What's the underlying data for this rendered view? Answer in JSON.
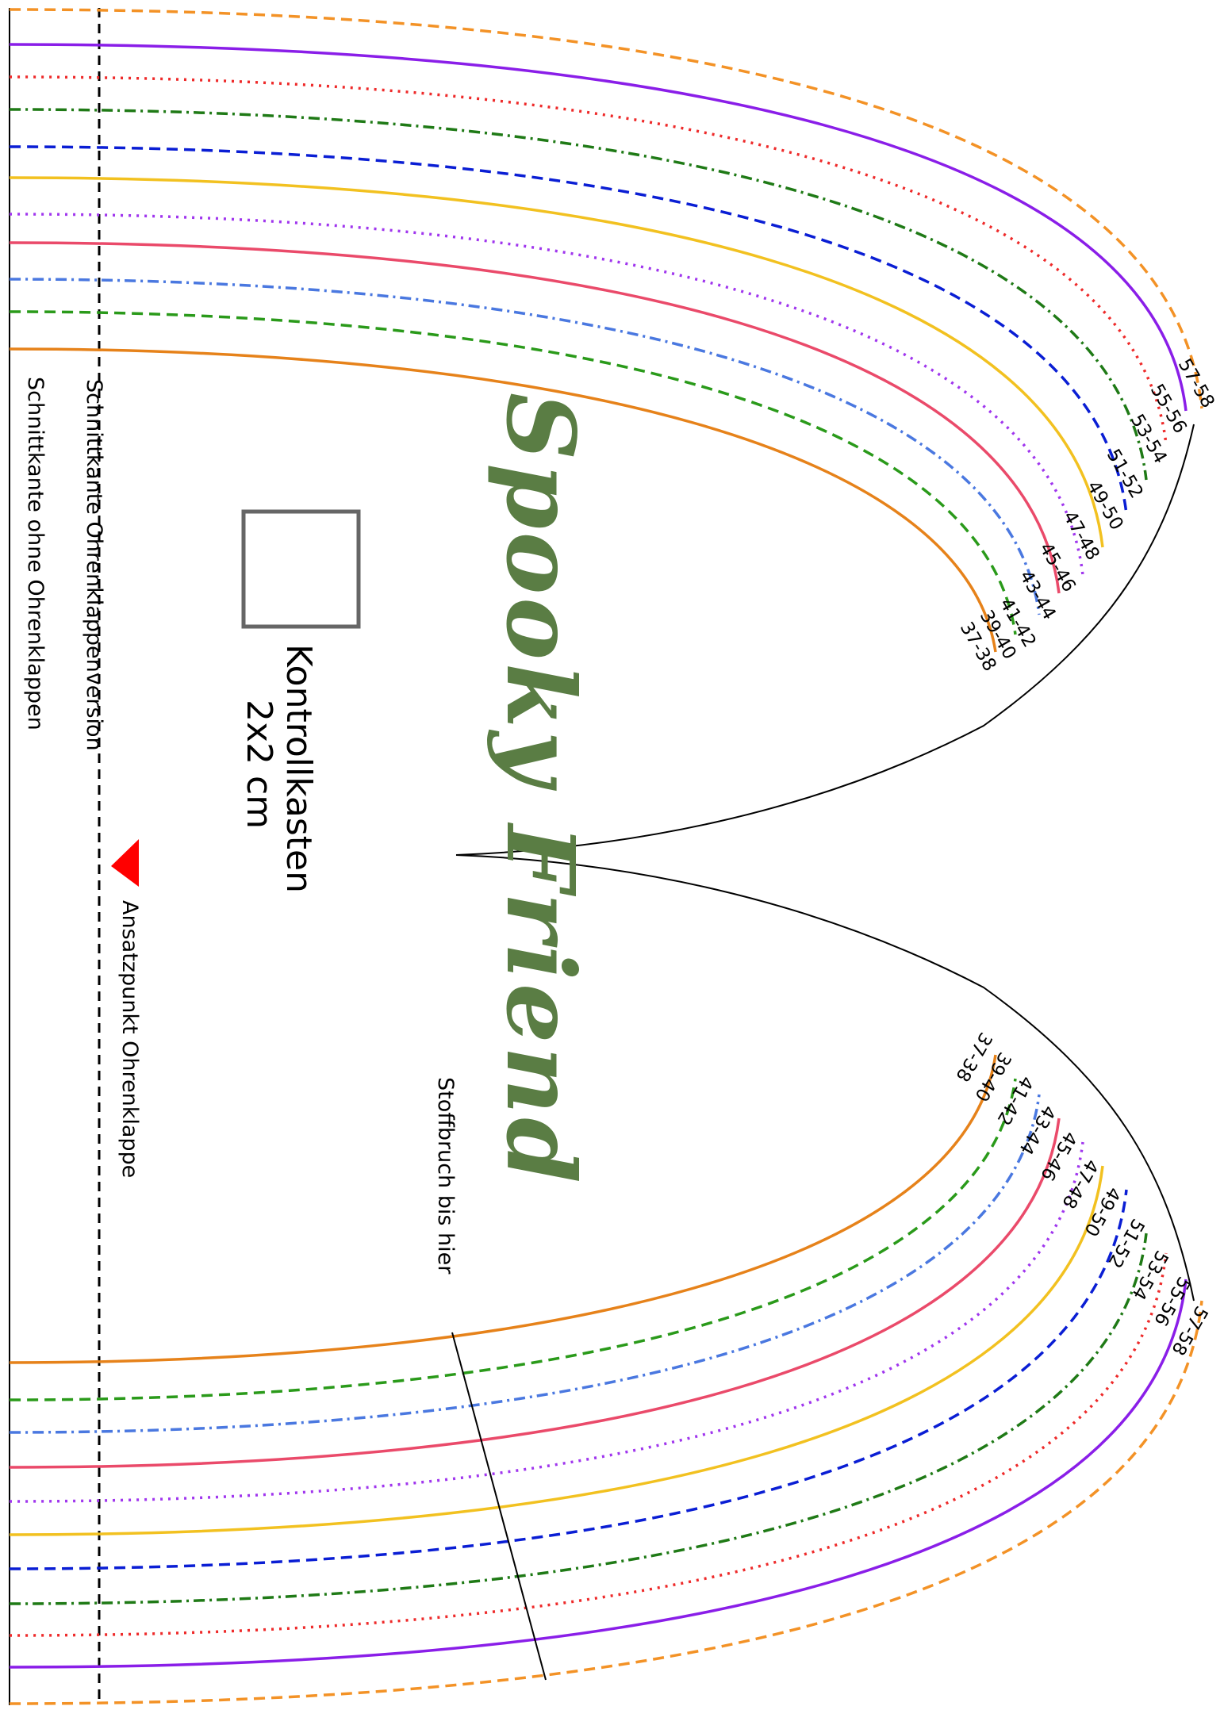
{
  "brand": {
    "name": "Spooky Friend",
    "color": "#5a7d44"
  },
  "labels": {
    "cut_edge_earflap": "Schnittkante Ohrenklappenversion",
    "cut_edge_no_earflap": "Schnittkante ohne Ohrenklappen",
    "earflap_attach": "Ansatzpunkt Ohrenklappe",
    "fold": "Stoffbruch bis hier",
    "control_box_title": "Kontrollkasten",
    "control_box_size": "2x2 cm"
  },
  "sizes": [
    {
      "label": "57-58",
      "color": "#f39226",
      "dash": "dashed"
    },
    {
      "label": "55-56",
      "color": "#8a1ee8",
      "dash": "solid"
    },
    {
      "label": "53-54",
      "color": "#ee2a2a",
      "dash": "dotted"
    },
    {
      "label": "51-52",
      "color": "#1f7a16",
      "dash": "dashdot"
    },
    {
      "label": "49-50",
      "color": "#0a1ed4",
      "dash": "dashed"
    },
    {
      "label": "47-48",
      "color": "#f2c120",
      "dash": "solid"
    },
    {
      "label": "45-46",
      "color": "#a036ee",
      "dash": "dotted"
    },
    {
      "label": "43-44",
      "color": "#ea4a6a",
      "dash": "solid"
    },
    {
      "label": "41-42",
      "color": "#4a78e0",
      "dash": "dashdot"
    },
    {
      "label": "39-40",
      "color": "#2a9a1a",
      "dash": "dashed"
    },
    {
      "label": "37-38",
      "color": "#e6821a",
      "dash": "solid"
    }
  ],
  "marker_color": "#ff0000",
  "control_box_color": "#666666"
}
